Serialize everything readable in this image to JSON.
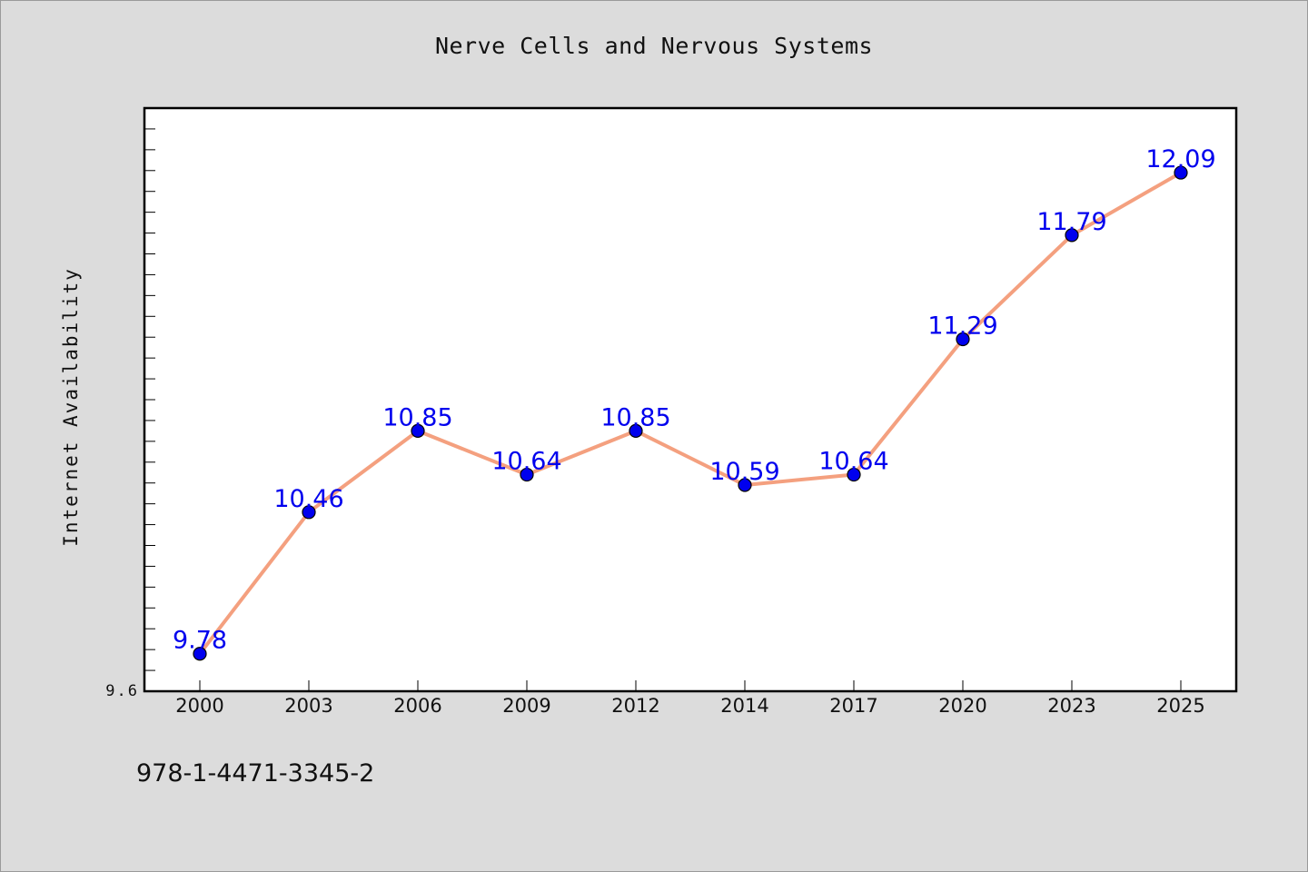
{
  "chart_data": {
    "type": "line",
    "title": "Nerve Cells and Nervous Systems",
    "xlabel": "",
    "ylabel": "Internet Availability",
    "categories": [
      "2000",
      "2003",
      "2006",
      "2009",
      "2012",
      "2014",
      "2017",
      "2020",
      "2023",
      "2025"
    ],
    "series": [
      {
        "values": [
          9.78,
          10.46,
          10.85,
          10.64,
          10.85,
          10.59,
          10.64,
          11.29,
          11.79,
          12.09
        ],
        "labels": [
          "9.78",
          "10.46",
          "10.85",
          "10.64",
          "10.85",
          "10.59",
          "10.64",
          "11.29",
          "11.79",
          "12.09"
        ],
        "line_color": "#f4a07f",
        "marker_color": "#0000ee",
        "label_color": "#0000ee"
      }
    ],
    "ylim": [
      9.6,
      12.4
    ],
    "yticks_labeled": [
      "9.6"
    ],
    "grid": false,
    "legend": "none"
  },
  "footer": {
    "isbn": "978-1-4471-3345-2"
  }
}
